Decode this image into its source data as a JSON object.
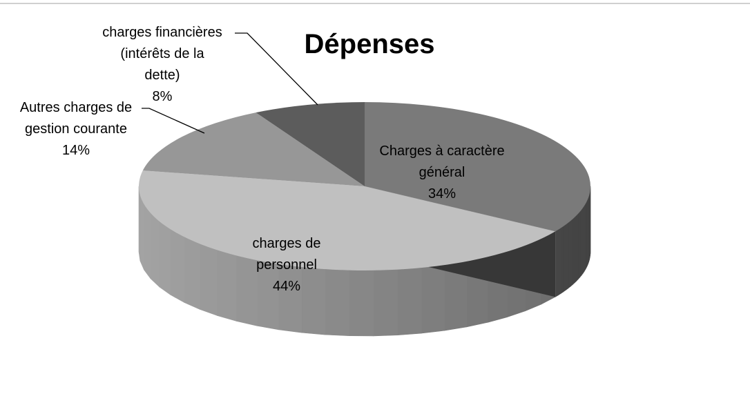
{
  "chart_data": {
    "type": "pie3d",
    "title": "Dépenses",
    "categories": [
      "Charges à caractère\ngénéral",
      "charges de\npersonnel",
      "Autres charges de\ngestion courante",
      "charges financières\n(intérêts de la\ndette)"
    ],
    "values": [
      34,
      44,
      14,
      8
    ],
    "value_labels": [
      "34%",
      "44%",
      "14%",
      "8%"
    ],
    "colors": [
      "#7a7a7a",
      "#c0c0c0",
      "#979797",
      "#5c5c5c"
    ]
  }
}
